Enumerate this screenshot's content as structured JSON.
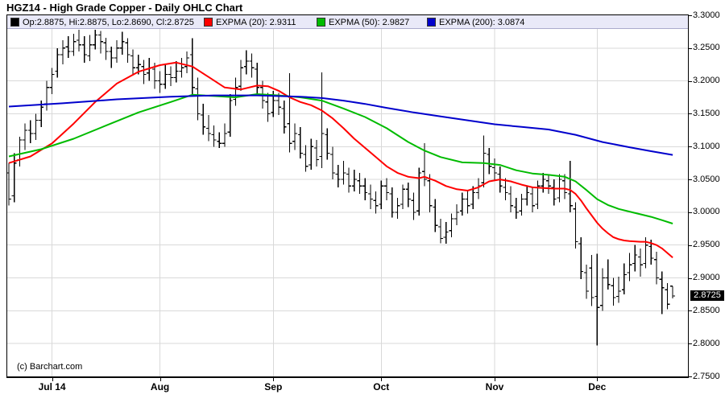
{
  "title": "HGZ14 - High Grade Copper - Daily OHLC Chart",
  "copyright": "(c) Barchart.com",
  "last_price": "2.8725",
  "legend": {
    "ohlc": {
      "label": "Op:2.8875, Hi:2.8875, Lo:2.8690, Cl:2.8725",
      "color": "#000000"
    },
    "ema20": {
      "label": "EXPMA (20): 2.9311",
      "color": "#ff0000"
    },
    "ema50": {
      "label": "EXPMA (50): 2.9827",
      "color": "#00bb00"
    },
    "ema200": {
      "label": "EXPMA (200): 3.0874",
      "color": "#0000cc"
    }
  },
  "chart_data": {
    "type": "bar",
    "subtype": "ohlc-bars-with-ema-overlays",
    "title": "HGZ14 - High Grade Copper - Daily OHLC Chart",
    "ylim": [
      2.75,
      3.3
    ],
    "grid": true,
    "legend_position": "top",
    "y_ticks": [
      "3.3000",
      "3.2500",
      "3.2000",
      "3.1500",
      "3.1000",
      "3.0500",
      "3.0000",
      "2.9500",
      "2.9000",
      "2.8500",
      "2.8000",
      "2.7500"
    ],
    "y_tick_values": [
      3.3,
      3.25,
      3.2,
      3.15,
      3.1,
      3.05,
      3.0,
      2.95,
      2.9,
      2.85,
      2.8,
      2.75
    ],
    "x_ticks": [
      {
        "label": "Jul 14",
        "day": 8
      },
      {
        "label": "Aug",
        "day": 28
      },
      {
        "label": "Sep",
        "day": 49
      },
      {
        "label": "Oct",
        "day": 69
      },
      {
        "label": "Nov",
        "day": 90
      },
      {
        "label": "Dec",
        "day": 109
      }
    ],
    "last_close": 2.8725,
    "ohlc_name": "HGZ14 Daily OHLC",
    "ohlc": [
      [
        3.06,
        3.075,
        3.01,
        3.02
      ],
      [
        3.025,
        3.09,
        3.015,
        3.075
      ],
      [
        3.08,
        3.115,
        3.07,
        3.11
      ],
      [
        3.11,
        3.135,
        3.095,
        3.125
      ],
      [
        3.125,
        3.14,
        3.105,
        3.12
      ],
      [
        3.12,
        3.15,
        3.11,
        3.14
      ],
      [
        3.14,
        3.17,
        3.13,
        3.16
      ],
      [
        3.165,
        3.2,
        3.155,
        3.19
      ],
      [
        3.19,
        3.22,
        3.18,
        3.21
      ],
      [
        3.215,
        3.25,
        3.205,
        3.24
      ],
      [
        3.24,
        3.262,
        3.225,
        3.25
      ],
      [
        3.252,
        3.268,
        3.235,
        3.245
      ],
      [
        3.245,
        3.272,
        3.238,
        3.26
      ],
      [
        3.262,
        3.278,
        3.245,
        3.255
      ],
      [
        3.255,
        3.268,
        3.228,
        3.24
      ],
      [
        3.238,
        3.27,
        3.23,
        3.255
      ],
      [
        3.255,
        3.278,
        3.248,
        3.27
      ],
      [
        3.27,
        3.276,
        3.242,
        3.26
      ],
      [
        3.258,
        3.266,
        3.232,
        3.245
      ],
      [
        3.245,
        3.252,
        3.22,
        3.235
      ],
      [
        3.235,
        3.262,
        3.228,
        3.25
      ],
      [
        3.25,
        3.275,
        3.24,
        3.26
      ],
      [
        3.258,
        3.265,
        3.228,
        3.24
      ],
      [
        3.238,
        3.248,
        3.208,
        3.22
      ],
      [
        3.22,
        3.24,
        3.21,
        3.225
      ],
      [
        3.222,
        3.232,
        3.195,
        3.21
      ],
      [
        3.212,
        3.235,
        3.2,
        3.22
      ],
      [
        3.218,
        3.228,
        3.188,
        3.2
      ],
      [
        3.2,
        3.215,
        3.182,
        3.195
      ],
      [
        3.195,
        3.225,
        3.188,
        3.21
      ],
      [
        3.21,
        3.222,
        3.192,
        3.205
      ],
      [
        3.205,
        3.23,
        3.198,
        3.215
      ],
      [
        3.215,
        3.235,
        3.205,
        3.22
      ],
      [
        3.222,
        3.245,
        3.212,
        3.235
      ],
      [
        3.24,
        3.265,
        3.178,
        3.19
      ],
      [
        3.188,
        3.205,
        3.14,
        3.15
      ],
      [
        3.148,
        3.165,
        3.118,
        3.13
      ],
      [
        3.128,
        3.148,
        3.108,
        3.12
      ],
      [
        3.118,
        3.132,
        3.1,
        3.11
      ],
      [
        3.108,
        3.122,
        3.098,
        3.105
      ],
      [
        3.105,
        3.135,
        3.1,
        3.12
      ],
      [
        3.122,
        3.18,
        3.115,
        3.17
      ],
      [
        3.172,
        3.205,
        3.162,
        3.19
      ],
      [
        3.192,
        3.232,
        3.185,
        3.22
      ],
      [
        3.222,
        3.247,
        3.21,
        3.23
      ],
      [
        3.23,
        3.242,
        3.205,
        3.22
      ],
      [
        3.218,
        3.228,
        3.18,
        3.19
      ],
      [
        3.19,
        3.2,
        3.158,
        3.17
      ],
      [
        3.168,
        3.182,
        3.138,
        3.15
      ],
      [
        3.152,
        3.185,
        3.145,
        3.17
      ],
      [
        3.17,
        3.182,
        3.148,
        3.16
      ],
      [
        3.158,
        3.17,
        3.12,
        3.13
      ],
      [
        3.135,
        3.212,
        3.091,
        3.105
      ],
      [
        3.108,
        3.135,
        3.095,
        3.12
      ],
      [
        3.118,
        3.13,
        3.082,
        3.09
      ],
      [
        3.088,
        3.102,
        3.062,
        3.07
      ],
      [
        3.072,
        3.112,
        3.065,
        3.1
      ],
      [
        3.098,
        3.11,
        3.07,
        3.08
      ],
      [
        3.085,
        3.213,
        3.067,
        3.12
      ],
      [
        3.118,
        3.128,
        3.08,
        3.09
      ],
      [
        3.088,
        3.1,
        3.05,
        3.06
      ],
      [
        3.058,
        3.072,
        3.038,
        3.05
      ],
      [
        3.05,
        3.078,
        3.042,
        3.06
      ],
      [
        3.058,
        3.068,
        3.03,
        3.04
      ],
      [
        3.04,
        3.065,
        3.032,
        3.05
      ],
      [
        3.048,
        3.06,
        3.028,
        3.04
      ],
      [
        3.04,
        3.052,
        3.018,
        3.03
      ],
      [
        3.028,
        3.042,
        3.005,
        3.02
      ],
      [
        3.018,
        3.032,
        2.998,
        3.01
      ],
      [
        3.012,
        3.048,
        3.005,
        3.04
      ],
      [
        3.04,
        3.052,
        3.018,
        3.03
      ],
      [
        3.028,
        3.038,
        2.992,
        3.0
      ],
      [
        3.0,
        3.022,
        2.99,
        3.01
      ],
      [
        3.012,
        3.042,
        3.005,
        3.035
      ],
      [
        3.035,
        3.045,
        3.008,
        3.02
      ],
      [
        3.018,
        3.03,
        2.988,
        3.0
      ],
      [
        3.002,
        3.068,
        2.995,
        3.06
      ],
      [
        3.062,
        3.105,
        3.04,
        3.05
      ],
      [
        3.048,
        3.058,
        3.0,
        3.01
      ],
      [
        3.008,
        3.02,
        2.97,
        2.98
      ],
      [
        2.978,
        2.99,
        2.953,
        2.96
      ],
      [
        2.962,
        2.985,
        2.952,
        2.97
      ],
      [
        2.972,
        2.998,
        2.962,
        2.99
      ],
      [
        2.99,
        3.012,
        2.98,
        3.0
      ],
      [
        3.002,
        3.03,
        2.995,
        3.02
      ],
      [
        3.02,
        3.032,
        2.998,
        3.01
      ],
      [
        3.012,
        3.04,
        3.005,
        3.03
      ],
      [
        3.03,
        3.052,
        3.02,
        3.04
      ],
      [
        3.045,
        3.117,
        3.038,
        3.09
      ],
      [
        3.088,
        3.098,
        3.058,
        3.07
      ],
      [
        3.068,
        3.082,
        3.048,
        3.06
      ],
      [
        3.058,
        3.07,
        3.03,
        3.04
      ],
      [
        3.038,
        3.052,
        3.018,
        3.03
      ],
      [
        3.028,
        3.04,
        3.0,
        3.01
      ],
      [
        3.008,
        3.022,
        2.99,
        3.0
      ],
      [
        3.002,
        3.028,
        2.995,
        3.02
      ],
      [
        3.02,
        3.04,
        3.01,
        3.03
      ],
      [
        3.028,
        3.038,
        3.0,
        3.01
      ],
      [
        3.012,
        3.048,
        3.005,
        3.04
      ],
      [
        3.04,
        3.06,
        3.03,
        3.05
      ],
      [
        3.048,
        3.058,
        3.028,
        3.04
      ],
      [
        3.038,
        3.05,
        3.01,
        3.02
      ],
      [
        3.022,
        3.058,
        3.015,
        3.05
      ],
      [
        3.048,
        3.058,
        3.02,
        3.03
      ],
      [
        3.028,
        3.078,
        3.0,
        3.01
      ],
      [
        3.005,
        3.015,
        2.945,
        2.955
      ],
      [
        2.952,
        2.962,
        2.898,
        2.91
      ],
      [
        2.908,
        2.92,
        2.868,
        2.88
      ],
      [
        2.915,
        2.935,
        2.857,
        2.87
      ],
      [
        2.872,
        2.937,
        2.797,
        2.855
      ],
      [
        2.858,
        2.915,
        2.85,
        2.9
      ],
      [
        2.9,
        2.928,
        2.882,
        2.89
      ],
      [
        2.888,
        2.9,
        2.858,
        2.87
      ],
      [
        2.872,
        2.902,
        2.862,
        2.88
      ],
      [
        2.882,
        2.922,
        2.875,
        2.905
      ],
      [
        2.908,
        2.938,
        2.895,
        2.92
      ],
      [
        2.922,
        2.95,
        2.91,
        2.935
      ],
      [
        2.932,
        2.945,
        2.902,
        2.92
      ],
      [
        2.922,
        2.962,
        2.915,
        2.95
      ],
      [
        2.948,
        2.958,
        2.92,
        2.93
      ],
      [
        2.928,
        2.94,
        2.89,
        2.9
      ],
      [
        2.898,
        2.91,
        2.845,
        2.885
      ],
      [
        2.882,
        2.892,
        2.852,
        2.86
      ],
      [
        2.8875,
        2.8875,
        2.869,
        2.8725
      ]
    ],
    "series": [
      {
        "name": "EXPMA (20)",
        "value": 2.9311,
        "color": "#ff0000",
        "points": [
          [
            0,
            3.075
          ],
          [
            4,
            3.085
          ],
          [
            8,
            3.105
          ],
          [
            12,
            3.135
          ],
          [
            16,
            3.168
          ],
          [
            20,
            3.196
          ],
          [
            24,
            3.214
          ],
          [
            28,
            3.224
          ],
          [
            31,
            3.228
          ],
          [
            34,
            3.222
          ],
          [
            37,
            3.206
          ],
          [
            40,
            3.19
          ],
          [
            43,
            3.187
          ],
          [
            46,
            3.193
          ],
          [
            48,
            3.192
          ],
          [
            50,
            3.185
          ],
          [
            52,
            3.175
          ],
          [
            54,
            3.168
          ],
          [
            56,
            3.163
          ],
          [
            58,
            3.155
          ],
          [
            60,
            3.143
          ],
          [
            62,
            3.128
          ],
          [
            64,
            3.112
          ],
          [
            66,
            3.098
          ],
          [
            68,
            3.084
          ],
          [
            70,
            3.07
          ],
          [
            72,
            3.06
          ],
          [
            74,
            3.054
          ],
          [
            76,
            3.052
          ],
          [
            77,
            3.054
          ],
          [
            79,
            3.048
          ],
          [
            81,
            3.04
          ],
          [
            83,
            3.035
          ],
          [
            85,
            3.033
          ],
          [
            87,
            3.038
          ],
          [
            89,
            3.047
          ],
          [
            91,
            3.05
          ],
          [
            93,
            3.047
          ],
          [
            95,
            3.042
          ],
          [
            97,
            3.038
          ],
          [
            99,
            3.037
          ],
          [
            101,
            3.036
          ],
          [
            103,
            3.036
          ],
          [
            104,
            3.034
          ],
          [
            105,
            3.028
          ],
          [
            106,
            3.018
          ],
          [
            107,
            3.006
          ],
          [
            108,
            2.995
          ],
          [
            109,
            2.984
          ],
          [
            110,
            2.975
          ],
          [
            111,
            2.968
          ],
          [
            112,
            2.962
          ],
          [
            113,
            2.959
          ],
          [
            114,
            2.957
          ],
          [
            115,
            2.956
          ],
          [
            117,
            2.955
          ],
          [
            118,
            2.955
          ],
          [
            119,
            2.953
          ],
          [
            120,
            2.95
          ],
          [
            121,
            2.945
          ],
          [
            122,
            2.938
          ],
          [
            123,
            2.9311
          ]
        ]
      },
      {
        "name": "EXPMA (50)",
        "value": 2.9827,
        "color": "#00bb00",
        "points": [
          [
            0,
            3.085
          ],
          [
            6,
            3.096
          ],
          [
            12,
            3.112
          ],
          [
            18,
            3.132
          ],
          [
            24,
            3.152
          ],
          [
            30,
            3.168
          ],
          [
            34,
            3.179
          ],
          [
            38,
            3.177
          ],
          [
            42,
            3.175
          ],
          [
            46,
            3.18
          ],
          [
            50,
            3.178
          ],
          [
            54,
            3.175
          ],
          [
            58,
            3.17
          ],
          [
            62,
            3.158
          ],
          [
            66,
            3.145
          ],
          [
            70,
            3.128
          ],
          [
            74,
            3.107
          ],
          [
            77,
            3.094
          ],
          [
            80,
            3.084
          ],
          [
            84,
            3.076
          ],
          [
            88,
            3.075
          ],
          [
            91,
            3.072
          ],
          [
            94,
            3.064
          ],
          [
            97,
            3.059
          ],
          [
            100,
            3.057
          ],
          [
            103,
            3.054
          ],
          [
            105,
            3.047
          ],
          [
            107,
            3.034
          ],
          [
            109,
            3.02
          ],
          [
            111,
            3.011
          ],
          [
            113,
            3.005
          ],
          [
            115,
            3.001
          ],
          [
            117,
            2.997
          ],
          [
            119,
            2.993
          ],
          [
            121,
            2.988
          ],
          [
            123,
            2.9827
          ]
        ]
      },
      {
        "name": "EXPMA (200)",
        "value": 3.0874,
        "color": "#0000cc",
        "points": [
          [
            0,
            3.161
          ],
          [
            10,
            3.166
          ],
          [
            20,
            3.172
          ],
          [
            30,
            3.176
          ],
          [
            38,
            3.178
          ],
          [
            46,
            3.178
          ],
          [
            54,
            3.176
          ],
          [
            58,
            3.174
          ],
          [
            62,
            3.17
          ],
          [
            66,
            3.165
          ],
          [
            70,
            3.159
          ],
          [
            75,
            3.152
          ],
          [
            80,
            3.146
          ],
          [
            85,
            3.14
          ],
          [
            90,
            3.134
          ],
          [
            95,
            3.13
          ],
          [
            100,
            3.126
          ],
          [
            105,
            3.118
          ],
          [
            110,
            3.107
          ],
          [
            115,
            3.099
          ],
          [
            119,
            3.093
          ],
          [
            123,
            3.0874
          ]
        ]
      }
    ],
    "colors": {
      "bars": "#000000",
      "grid": "#d9d9d9",
      "legend_bg": "#e9e9f8"
    }
  }
}
